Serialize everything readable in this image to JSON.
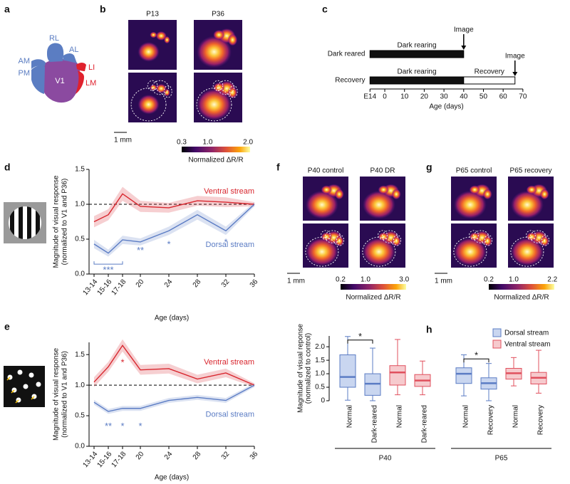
{
  "panel_labels": [
    "a",
    "b",
    "c",
    "d",
    "e",
    "f",
    "g",
    "h"
  ],
  "brain_map": {
    "areas": [
      "RL",
      "AL",
      "AM",
      "PM",
      "V1",
      "LI",
      "LM"
    ]
  },
  "imaging": [
    {
      "images": [
        "P13",
        "P36"
      ],
      "scale_bar": "1 mm",
      "colorbar": {
        "ticks": [
          "0.3",
          "1.0",
          "2.0"
        ],
        "label": "Normalized ΔR/R"
      }
    },
    {
      "images": [
        "P40 control",
        "P40 DR"
      ],
      "scale_bar": "1 mm",
      "colorbar": {
        "ticks": [
          "0.2",
          "1.0",
          "3.0"
        ],
        "label": "Normalized ΔR/R"
      }
    },
    {
      "images": [
        "P65 control",
        "P65 recovery"
      ],
      "scale_bar": "1 mm",
      "colorbar": {
        "ticks": [
          "0.2",
          "1.0",
          "2.2"
        ],
        "label": "Normalized ΔR/R"
      }
    }
  ],
  "chart_data": [
    {
      "type": "timeline",
      "xlabel": "Age (days)",
      "xlim": [
        -8.5,
        72
      ],
      "xticks": [
        {
          "value": -7.5,
          "label": "E14"
        },
        0,
        10,
        20,
        30,
        40,
        50,
        60,
        70
      ],
      "rows": [
        {
          "name": "Dark reared",
          "segments": [
            {
              "name": "Dark rearing",
              "start": -7.5,
              "end": 40,
              "color": "#111111"
            }
          ],
          "marker": {
            "label": "Image",
            "value": 40
          }
        },
        {
          "name": "Recovery",
          "segments": [
            {
              "name": "Dark rearing",
              "start": -7.5,
              "end": 40,
              "color": "#111111"
            },
            {
              "name": "Recovery",
              "start": 40,
              "end": 66,
              "color": "#ffffff"
            }
          ],
          "marker": {
            "label": "Image",
            "value": 66
          }
        }
      ]
    },
    {
      "type": "line",
      "xlabel": "Age (days)",
      "ylabel": [
        "Magnitude of visual response",
        "(normalized to V1 and P36)"
      ],
      "x": [
        13.5,
        15.5,
        17.5,
        20,
        24,
        28,
        32,
        36
      ],
      "xlim": [
        12.8,
        36
      ],
      "xticks": [
        {
          "value": 13.5,
          "label": "13-14"
        },
        {
          "value": 15.5,
          "label": "15-16"
        },
        {
          "value": 17.5,
          "label": "17-18"
        },
        20,
        24,
        28,
        32,
        36
      ],
      "ylim": [
        0,
        1.5
      ],
      "yticks": [
        {
          "value": 0,
          "label": "0.0"
        },
        0.5,
        {
          "value": 1,
          "label": "1.0"
        },
        1.5
      ],
      "reference_line": 1,
      "series": [
        {
          "name": "Ventral stream",
          "color": "#d8262e",
          "values": [
            0.75,
            0.85,
            1.15,
            0.97,
            0.95,
            1.05,
            1.03,
            1.0
          ],
          "errors": [
            0.08,
            0.08,
            0.1,
            0.08,
            0.07,
            0.07,
            0.07,
            0.03
          ]
        },
        {
          "name": "Dorsal stream",
          "color": "#5b7cc4",
          "values": [
            0.43,
            0.3,
            0.49,
            0.46,
            0.62,
            0.85,
            0.62,
            1.0
          ],
          "errors": [
            0.06,
            0.05,
            0.06,
            0.05,
            0.06,
            0.07,
            0.06,
            0.03
          ]
        }
      ],
      "annotations": [
        {
          "text": "***",
          "x": 15.5,
          "y": 0.05,
          "span": [
            13.5,
            17.5
          ],
          "color": "#5b7cc4"
        },
        {
          "text": "**",
          "x": 20,
          "y": 0.33,
          "color": "#5b7cc4"
        },
        {
          "text": "*",
          "x": 24,
          "y": 0.42,
          "color": "#5b7cc4"
        },
        {
          "text": "*",
          "x": 32,
          "y": 0.45,
          "color": "#5b7cc4"
        }
      ]
    },
    {
      "type": "line",
      "xlabel": "Age (days)",
      "ylabel": [
        "Magnitude of visual response",
        "(normalized to V1 and P36)"
      ],
      "x": [
        13.5,
        15.5,
        17.5,
        20,
        24,
        28,
        32,
        36
      ],
      "xlim": [
        12.8,
        36
      ],
      "xticks": [
        {
          "value": 13.5,
          "label": "13-14"
        },
        {
          "value": 15.5,
          "label": "15-16"
        },
        {
          "value": 17.5,
          "label": "17-18"
        },
        20,
        24,
        28,
        32,
        36
      ],
      "ylim": [
        0,
        1.7
      ],
      "yticks": [
        {
          "value": 0,
          "label": "0.0"
        },
        0.5,
        {
          "value": 1,
          "label": "1.0"
        },
        1.5
      ],
      "reference_line": 1,
      "series": [
        {
          "name": "Ventral stream",
          "color": "#d8262e",
          "values": [
            1.05,
            1.3,
            1.65,
            1.25,
            1.27,
            1.1,
            1.2,
            1.0
          ],
          "errors": [
            0.08,
            0.08,
            0.1,
            0.08,
            0.08,
            0.07,
            0.07,
            0.03
          ]
        },
        {
          "name": "Dorsal stream",
          "color": "#5b7cc4",
          "values": [
            0.72,
            0.57,
            0.62,
            0.62,
            0.75,
            0.8,
            0.75,
            1.0
          ],
          "errors": [
            0.04,
            0.04,
            0.04,
            0.04,
            0.04,
            0.04,
            0.04,
            0.03
          ]
        }
      ],
      "annotations": [
        {
          "text": "*",
          "x": 17.5,
          "y": 1.36,
          "color": "#d8262e"
        },
        {
          "text": "**",
          "x": 15.5,
          "y": 0.32,
          "color": "#5b7cc4"
        },
        {
          "text": "*",
          "x": 17.5,
          "y": 0.32,
          "color": "#5b7cc4"
        },
        {
          "text": "*",
          "x": 20,
          "y": 0.32,
          "color": "#5b7cc4"
        }
      ]
    },
    {
      "type": "box",
      "ylabel": [
        "Magnitude of visual reponse",
        "(normalized to control)"
      ],
      "ylim": [
        0,
        2.4
      ],
      "yticks": [
        0,
        0.5,
        {
          "value": 1,
          "label": "1.0"
        },
        1.5,
        {
          "value": 2,
          "label": "2.0"
        }
      ],
      "series": [
        {
          "name": "Dorsal stream",
          "color": "#5b7cc4",
          "fill": "#c9d6f0"
        },
        {
          "name": "Ventral stream",
          "color": "#e0505e",
          "fill": "#f6cacd"
        }
      ],
      "groups": [
        {
          "label": "P40",
          "series": [
            {
              "categories": [
                "Normal",
                "Dark-reared"
              ],
              "boxes": [
                [
                  0.02,
                  0.5,
                  0.88,
                  1.7,
                  2.38
                ],
                [
                  0,
                  0.2,
                  0.63,
                  1.0,
                  1.95
                ]
              ],
              "significance": {
                "label": "*",
                "y": 2.25
              }
            },
            {
              "categories": [
                "Normal",
                "Dark-reared"
              ],
              "boxes": [
                [
                  0.22,
                  0.58,
                  1.05,
                  1.3,
                  2.27
                ],
                [
                  0.22,
                  0.53,
                  0.75,
                  0.97,
                  1.47
                ]
              ]
            }
          ]
        },
        {
          "label": "P65",
          "series": [
            {
              "categories": [
                "Normal",
                "Recovery"
              ],
              "boxes": [
                [
                  0.18,
                  0.64,
                  1.0,
                  1.22,
                  1.7
                ],
                [
                  0,
                  0.43,
                  0.65,
                  0.85,
                  1.38
                ]
              ],
              "significance": {
                "label": "*",
                "y": 1.55
              }
            },
            {
              "categories": [
                "Normal",
                "Recovery"
              ],
              "boxes": [
                [
                  0.55,
                  0.8,
                  1.02,
                  1.2,
                  1.6
                ],
                [
                  0.28,
                  0.62,
                  0.85,
                  1.05,
                  1.87
                ]
              ]
            }
          ]
        }
      ]
    }
  ]
}
